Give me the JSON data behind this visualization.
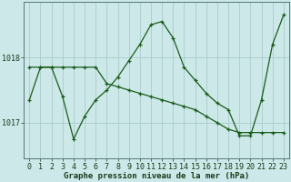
{
  "title": "Graphe pression niveau de la mer (hPa)",
  "bg_color": "#cce8e8",
  "grid_color_major": "#aacccc",
  "grid_color_minor": "#bbdada",
  "line_color": "#1a5c1a",
  "series1_x": [
    0,
    1,
    2,
    3,
    4,
    5,
    6,
    7,
    8,
    9,
    10,
    11,
    12,
    13,
    14,
    15,
    16,
    17,
    18,
    19,
    20,
    21,
    22,
    23
  ],
  "series1_y": [
    1017.35,
    1017.85,
    1017.85,
    1017.4,
    1016.75,
    1017.1,
    1017.35,
    1017.5,
    1017.7,
    1017.95,
    1018.2,
    1018.5,
    1018.55,
    1018.3,
    1017.85,
    1017.65,
    1017.45,
    1017.3,
    1017.2,
    1016.8,
    1016.8,
    1017.35,
    1018.2,
    1018.65
  ],
  "series2_x": [
    0,
    1,
    2,
    3,
    4,
    5,
    6,
    7,
    8,
    9,
    10,
    11,
    12,
    13,
    14,
    15,
    16,
    17,
    18,
    19,
    20,
    21,
    22,
    23
  ],
  "series2_y": [
    1017.85,
    1017.85,
    1017.85,
    1017.85,
    1017.85,
    1017.85,
    1017.85,
    1017.6,
    1017.55,
    1017.5,
    1017.45,
    1017.4,
    1017.35,
    1017.3,
    1017.25,
    1017.2,
    1017.1,
    1017.0,
    1016.9,
    1016.85,
    1016.85,
    1016.85,
    1016.85,
    1016.85
  ],
  "ylim": [
    1016.45,
    1018.85
  ],
  "yticks": [
    1017.0,
    1018.0
  ],
  "xticks": [
    0,
    1,
    2,
    3,
    4,
    5,
    6,
    7,
    8,
    9,
    10,
    11,
    12,
    13,
    14,
    15,
    16,
    17,
    18,
    19,
    20,
    21,
    22,
    23
  ],
  "tick_fontsize": 6,
  "title_fontsize": 6.5
}
